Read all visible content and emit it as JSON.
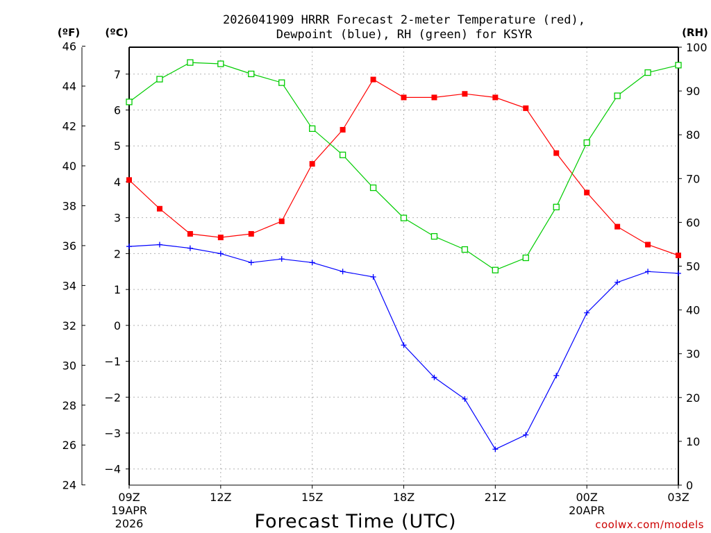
{
  "chart_data": {
    "type": "line",
    "title_line1": "2026041909 HRRR Forecast 2-meter Temperature (red),",
    "title_line2": "Dewpoint (blue), RH (green) for KSYR",
    "xlabel": "Forecast Time (UTC)",
    "credit": "coolwx.com/models",
    "units": {
      "fahrenheit": "(ºF)",
      "celsius": "(ºC)",
      "rh": "(RH)"
    },
    "hours": [
      0,
      1,
      2,
      3,
      4,
      5,
      6,
      7,
      8,
      9,
      10,
      11,
      12,
      13,
      14,
      15,
      16,
      17,
      18
    ],
    "xlim": [
      0,
      18
    ],
    "x_ticks": [
      {
        "hour": 0,
        "label": "09Z",
        "sub1": "19APR",
        "sub2": "2026"
      },
      {
        "hour": 3,
        "label": "12Z"
      },
      {
        "hour": 6,
        "label": "15Z"
      },
      {
        "hour": 9,
        "label": "18Z"
      },
      {
        "hour": 12,
        "label": "21Z"
      },
      {
        "hour": 15,
        "label": "00Z",
        "sub1": "20APR"
      },
      {
        "hour": 18,
        "label": "03Z"
      }
    ],
    "y_celsius": {
      "lim": [
        -4.45,
        7.75
      ],
      "ticks": [
        -4,
        -3,
        -2,
        -1,
        0,
        1,
        2,
        3,
        4,
        5,
        6,
        7
      ]
    },
    "y_fahrenheit": {
      "ticks": [
        24,
        26,
        28,
        30,
        32,
        34,
        36,
        38,
        40,
        42,
        44,
        46
      ]
    },
    "y_rh": {
      "lim": [
        0,
        100
      ],
      "ticks": [
        0,
        10,
        20,
        30,
        40,
        50,
        60,
        70,
        80,
        90,
        100
      ]
    },
    "series": [
      {
        "name": "Temperature",
        "axis": "celsius",
        "color": "#ff0000",
        "marker": "filled-square",
        "values": [
          4.05,
          3.25,
          2.55,
          2.45,
          2.55,
          2.9,
          4.5,
          5.45,
          6.85,
          6.35,
          6.35,
          6.45,
          6.35,
          6.05,
          4.8,
          3.7,
          2.75,
          2.25,
          1.95
        ]
      },
      {
        "name": "Dewpoint",
        "axis": "celsius",
        "color": "#0000ff",
        "marker": "plus",
        "values": [
          2.2,
          2.25,
          2.15,
          2.0,
          1.75,
          1.85,
          1.75,
          1.5,
          1.35,
          -0.55,
          -1.45,
          -2.05,
          -3.45,
          -3.05,
          -1.4,
          0.35,
          1.2,
          1.5,
          1.45
        ]
      },
      {
        "name": "RH",
        "axis": "rh",
        "color": "#00cc00",
        "marker": "open-square",
        "values": [
          87.5,
          92.7,
          96.5,
          96.2,
          93.9,
          91.9,
          81.4,
          75.4,
          67.9,
          61.0,
          56.8,
          53.8,
          49.1,
          51.9,
          63.5,
          78.2,
          88.9,
          94.2,
          95.9
        ]
      }
    ],
    "grid": true
  }
}
